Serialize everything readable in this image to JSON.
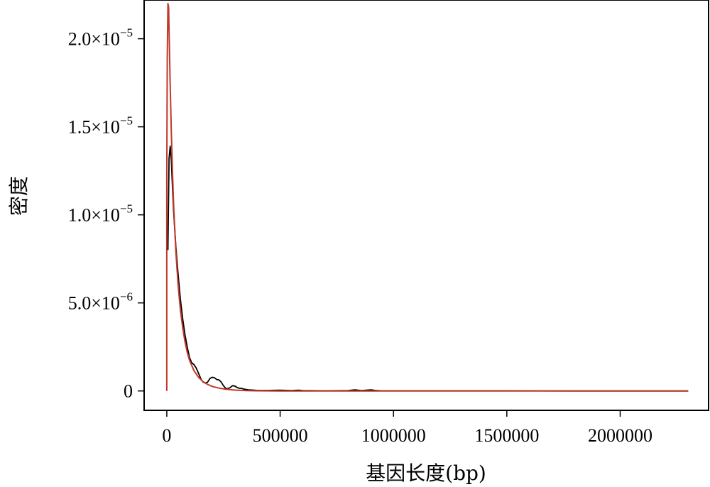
{
  "chart_data": {
    "type": "line",
    "xlabel": "基因长度(bp)",
    "ylabel": "密度",
    "xlim": [
      -100000,
      2390000
    ],
    "ylim": [
      -1.1e-06,
      2.22e-05
    ],
    "x_ticks": [
      0,
      500000,
      1000000,
      1500000,
      2000000
    ],
    "x_tick_labels": [
      "0",
      "500000",
      "1000000",
      "1500000",
      "2000000"
    ],
    "y_ticks": [
      0,
      5e-06,
      1e-05,
      1.5e-05,
      2e-05
    ],
    "y_tick_labels": [
      {
        "mantissa": "0",
        "exp": ""
      },
      {
        "mantissa": "5.0×10",
        "exp": "−6"
      },
      {
        "mantissa": "1.0×10",
        "exp": "−5"
      },
      {
        "mantissa": "1.5×10",
        "exp": "−5"
      },
      {
        "mantissa": "2.0×10",
        "exp": "−5"
      }
    ],
    "grid": false,
    "legend": false,
    "series": [
      {
        "color": "#000000",
        "x": [
          5000,
          10000,
          15000,
          20000,
          25000,
          30000,
          40000,
          50000,
          60000,
          70000,
          80000,
          90000,
          100000,
          110000,
          120000,
          130000,
          140000,
          150000,
          160000,
          170000,
          180000,
          190000,
          200000,
          210000,
          220000,
          230000,
          240000,
          250000,
          260000,
          270000,
          280000,
          290000,
          300000,
          310000,
          320000,
          330000,
          340000,
          360000,
          380000,
          400000,
          450000,
          500000,
          550000,
          580000,
          600000,
          700000,
          800000,
          830000,
          860000,
          900000,
          920000,
          950000,
          1000000,
          1100000,
          1200000,
          1300000,
          1500000,
          1800000,
          2000000,
          2300000
        ],
        "y": [
          8e-06,
          1.32e-05,
          1.39e-05,
          1.31e-05,
          1.16e-05,
          1.02e-05,
          8.2e-06,
          6.6e-06,
          5.2e-06,
          4.1e-06,
          3.2e-06,
          2.5e-06,
          1.9e-06,
          1.6e-06,
          1.5e-06,
          1.3e-06,
          1e-06,
          7e-07,
          5e-07,
          4.5e-07,
          5e-07,
          7e-07,
          7.8e-07,
          7.5e-07,
          6.5e-07,
          6.3e-07,
          5e-07,
          3e-07,
          1.5e-07,
          1.3e-07,
          2e-07,
          3e-07,
          2.8e-07,
          2e-07,
          1.5e-07,
          1.5e-07,
          1e-07,
          6e-08,
          5e-08,
          3e-08,
          3e-08,
          4e-08,
          2e-08,
          4e-08,
          2e-08,
          1e-08,
          2e-08,
          6e-08,
          2e-08,
          6e-08,
          3e-08,
          1e-08,
          1e-08,
          1e-08,
          1e-08,
          1e-08,
          1e-08,
          0,
          0,
          0
        ]
      },
      {
        "color": "#c0392b",
        "x": [
          0,
          0,
          2000,
          5000,
          8000,
          10000,
          15000,
          20000,
          25000,
          30000,
          40000,
          50000,
          60000,
          70000,
          80000,
          90000,
          100000,
          120000,
          140000,
          160000,
          180000,
          200000,
          230000,
          260000,
          300000,
          350000,
          400000,
          500000,
          600000,
          800000,
          1000000,
          1500000,
          2000000,
          2300000
        ],
        "y": [
          0,
          1.2e-05,
          1.9e-05,
          2.2e-05,
          2.18e-05,
          2.05e-05,
          1.74e-05,
          1.47e-05,
          1.25e-05,
          1.06e-05,
          7.9e-06,
          6e-06,
          4.6e-06,
          3.6e-06,
          2.8e-06,
          2.2e-06,
          1.75e-06,
          1.15e-06,
          7.8e-07,
          5.3e-07,
          3.7e-07,
          2.6e-07,
          1.6e-07,
          1e-07,
          5e-08,
          2e-08,
          1e-08,
          0,
          0,
          0,
          0,
          0,
          0,
          0
        ]
      }
    ]
  }
}
